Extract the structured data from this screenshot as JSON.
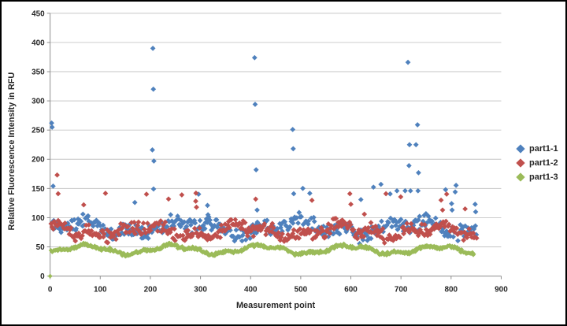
{
  "window": {
    "background": "#ffffff",
    "border_color": "#000000"
  },
  "chart_data": {
    "type": "scatter",
    "title": "",
    "xlabel": "Measurement point",
    "ylabel": "Relative Fluorescence Intensity in RFU",
    "xlim": [
      0,
      900
    ],
    "ylim": [
      0,
      450
    ],
    "x_ticks": [
      0,
      100,
      200,
      300,
      400,
      500,
      600,
      700,
      800,
      900
    ],
    "y_ticks": [
      0,
      50,
      100,
      150,
      200,
      250,
      300,
      350,
      400,
      450
    ],
    "grid": "horizontal-only",
    "legend_position": "right",
    "marker_shape": "diamond",
    "x_range_of_data": [
      0,
      850
    ],
    "styles": {
      "grid_color": "#c6c6c6",
      "axis_color": "#8e8e8e",
      "tick_label_color": "#262626",
      "axis_title_color": "#262626",
      "tick_font_px": 10,
      "title_font_px": 11
    },
    "series": [
      {
        "name": "part1-1",
        "color": "#4F81BD",
        "marker_half": 3.4,
        "band": {
          "comment": "dense noise band approximating ~850 readings",
          "x0": 2,
          "x1": 850,
          "step": 2,
          "base": 83,
          "waves": [
            [
              9,
              36,
              0.4
            ],
            [
              6,
              13.5,
              2.1
            ]
          ],
          "noise": 16,
          "min": 53,
          "max": 138,
          "spike_prob": 0.022,
          "spike_add": 18,
          "seed": 101
        },
        "outliers": [
          [
            3,
            262
          ],
          [
            4,
            255
          ],
          [
            6,
            154
          ],
          [
            169,
            126
          ],
          [
            205,
            390
          ],
          [
            206,
            320
          ],
          [
            204,
            216
          ],
          [
            207,
            197
          ],
          [
            314,
            121
          ],
          [
            315,
            105
          ],
          [
            408,
            374
          ],
          [
            409,
            294
          ],
          [
            411,
            182
          ],
          [
            413,
            113
          ],
          [
            484,
            251
          ],
          [
            485,
            218
          ],
          [
            486,
            141
          ],
          [
            620,
            131
          ],
          [
            692,
            146
          ],
          [
            714,
            366
          ],
          [
            716,
            189
          ],
          [
            717,
            225
          ],
          [
            719,
            146
          ],
          [
            730,
            225
          ],
          [
            733,
            259
          ],
          [
            735,
            177
          ],
          [
            734,
            146
          ],
          [
            789,
            148
          ],
          [
            801,
            124
          ],
          [
            802,
            113
          ],
          [
            848,
            123
          ],
          [
            849,
            110
          ]
        ]
      },
      {
        "name": "part1-2",
        "color": "#C0504D",
        "marker_half": 3.4,
        "band": {
          "comment": "dense noise band approximating ~850 readings",
          "x0": 2,
          "x1": 850,
          "step": 2,
          "base": 77,
          "waves": [
            [
              8,
              31,
              1.7
            ],
            [
              5,
              11.2,
              0.6
            ]
          ],
          "noise": 14,
          "min": 50,
          "max": 126,
          "spike_prob": 0.014,
          "spike_add": 14,
          "seed": 202
        },
        "outliers": [
          [
            14,
            173
          ],
          [
            16,
            141
          ],
          [
            67,
            122
          ],
          [
            291,
            142
          ],
          [
            292,
            118
          ],
          [
            598,
            141
          ],
          [
            600,
            123
          ],
          [
            627,
            106
          ],
          [
            780,
            130
          ],
          [
            783,
            113
          ],
          [
            828,
            115
          ]
        ]
      },
      {
        "name": "part1-3",
        "color": "#9BBB59",
        "marker_half": 3.0,
        "band": {
          "comment": "smooth wavy low band ~35-60 RFU",
          "x0": 2,
          "x1": 846,
          "step": 1.6,
          "base": 45,
          "waves": [
            [
              6.5,
              28,
              -0.9
            ],
            [
              2.5,
              9,
              0.3
            ]
          ],
          "noise": 3.5,
          "min": 32,
          "max": 62,
          "spike_prob": 0,
          "spike_add": 0,
          "seed": 303
        },
        "outliers": [
          [
            0,
            0
          ]
        ]
      }
    ]
  }
}
